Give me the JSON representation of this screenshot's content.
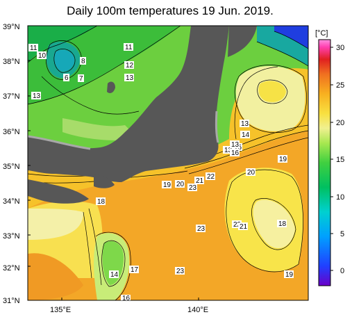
{
  "title": "Daily 100m temperatures 19 Jun. 2019.",
  "map": {
    "lat_labels": [
      "39°N",
      "38°N",
      "37°N",
      "36°N",
      "35°N",
      "34°N",
      "33°N",
      "32°N",
      "31°N"
    ],
    "lon_labels": [
      "135°E",
      "140°E"
    ]
  },
  "colorbar": {
    "unit": "[°C]",
    "ticks": [
      "30",
      "25",
      "20",
      "15",
      "10",
      "5",
      "0"
    ],
    "colors": [
      "#6a00c8",
      "#2040ff",
      "#00a0ff",
      "#00d0d0",
      "#00c060",
      "#40d040",
      "#a8e850",
      "#f0f090",
      "#f8e040",
      "#f8b020",
      "#f07020",
      "#e02020",
      "#ff40b0",
      "#ff90e0"
    ]
  },
  "contour_labels": [
    "11",
    "10",
    "8",
    "6",
    "7",
    "11",
    "12",
    "13",
    "13",
    "13",
    "13",
    "14",
    "15",
    "16",
    "13",
    "19",
    "20",
    "22",
    "21",
    "20",
    "19",
    "18",
    "23",
    "23",
    "22",
    "21",
    "18",
    "14",
    "17",
    "23",
    "19",
    "16"
  ]
}
